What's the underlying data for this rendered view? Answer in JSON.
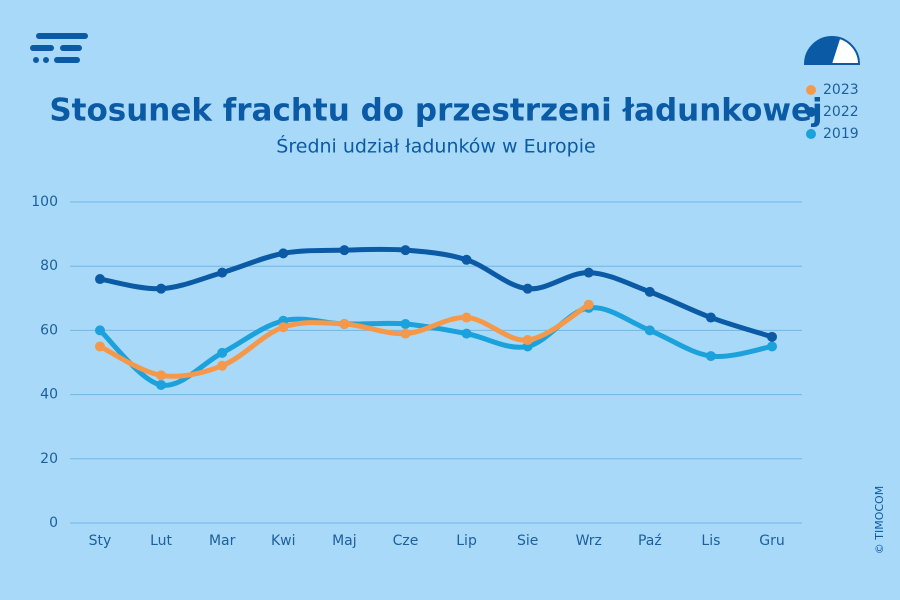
{
  "chart_data": {
    "type": "line",
    "title": "Stosunek frachtu do przestrzeni ładunkowej",
    "subtitle": "Średni udział ładunków w Europie",
    "copyright": "© TIMOCOM",
    "categories": [
      "Sty",
      "Lut",
      "Mar",
      "Kwi",
      "Maj",
      "Cze",
      "Lip",
      "Sie",
      "Wrz",
      "Paź",
      "Lis",
      "Gru"
    ],
    "series": [
      {
        "name": "2023",
        "color": "#f5984a",
        "values": [
          55,
          46,
          49,
          61,
          62,
          59,
          64,
          57,
          68,
          null,
          null,
          null
        ]
      },
      {
        "name": "2022",
        "color": "#0b5aa6",
        "values": [
          76,
          73,
          78,
          84,
          85,
          85,
          82,
          73,
          78,
          72,
          64,
          58
        ]
      },
      {
        "name": "2019",
        "color": "#1ba1dc",
        "values": [
          60,
          43,
          53,
          63,
          62,
          62,
          59,
          55,
          67,
          60,
          52,
          55
        ]
      }
    ],
    "ylim": [
      0,
      100
    ],
    "yticks": [
      0,
      20,
      40,
      60,
      80,
      100
    ],
    "grid": true,
    "legend": "top-right",
    "smooth": true
  }
}
